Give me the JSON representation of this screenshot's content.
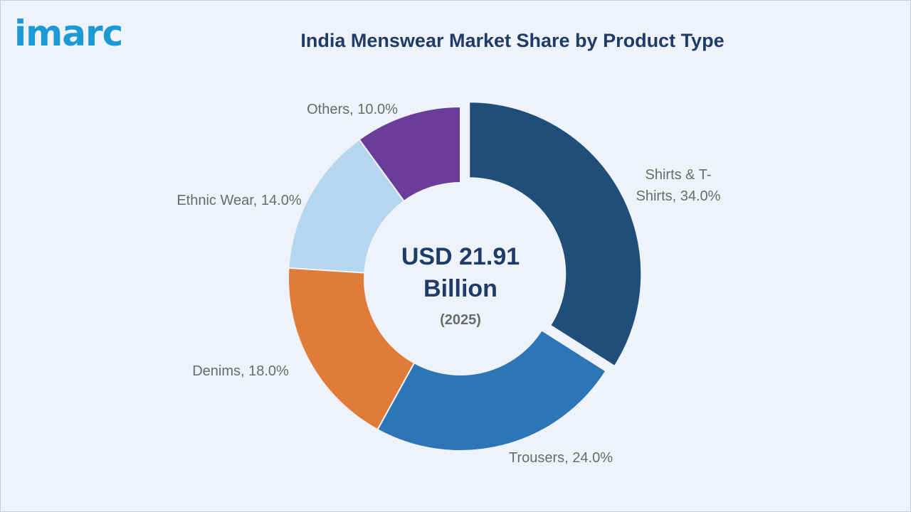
{
  "brand": {
    "logo_text": "imarc"
  },
  "chart_data": {
    "type": "pie",
    "title": "India Menswear Market Share by Product Type",
    "center": {
      "line1": "USD 21.91",
      "line2": "Billion",
      "line3": "(2025)"
    },
    "slices": [
      {
        "label": "Shirts & T-Shirts",
        "label_lines": [
          "Shirts & T-",
          "Shirts, 34.0%"
        ],
        "value": 34.0,
        "color": "#1f4e79",
        "exploded": true
      },
      {
        "label": "Trousers",
        "label_lines": [
          "Trousers, 24.0%"
        ],
        "value": 24.0,
        "color": "#2e75b6",
        "exploded": false
      },
      {
        "label": "Denims",
        "label_lines": [
          "Denims, 18.0%"
        ],
        "value": 18.0,
        "color": "#e07b39",
        "exploded": false
      },
      {
        "label": "Ethnic Wear",
        "label_lines": [
          "Ethnic Wear, 14.0%"
        ],
        "value": 14.0,
        "color": "#b4d6ef",
        "exploded": false
      },
      {
        "label": "Others",
        "label_lines": [
          "Others, 10.0%"
        ],
        "value": 10.0,
        "color": "#6a3d9a",
        "exploded": false
      }
    ],
    "legend": "none"
  }
}
